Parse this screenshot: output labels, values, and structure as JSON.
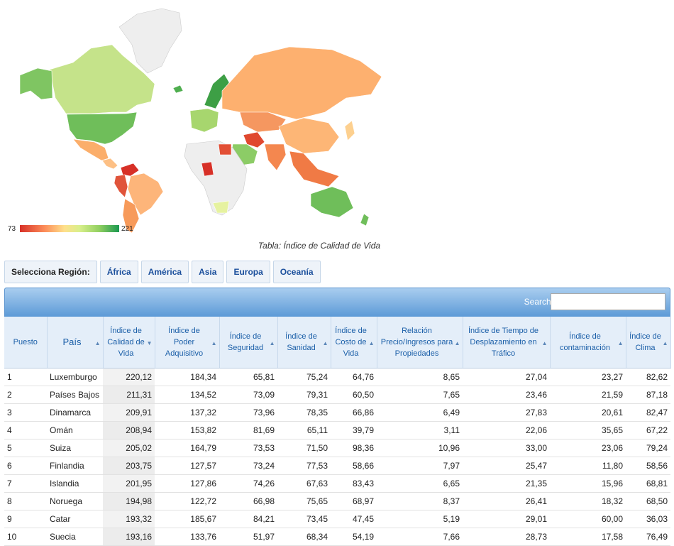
{
  "map": {
    "legend_min": "73",
    "legend_max": "221",
    "gradient_colors": [
      "#d73027",
      "#fc8d59",
      "#fee08b",
      "#d9ef8b",
      "#91cf60",
      "#1a9850"
    ]
  },
  "caption": "Tabla: Índice de Calidad de Vida",
  "region_bar": {
    "label": "Selecciona Región:",
    "buttons": [
      "África",
      "América",
      "Asia",
      "Europa",
      "Oceanía"
    ]
  },
  "table": {
    "search_label": "Search:",
    "search_value": "",
    "columns": [
      "Puesto",
      "País",
      "Índice de Calidad de Vida",
      "Índice de Poder Adquisitivo",
      "Índice de Seguridad",
      "Índice de Sanidad",
      "Índice de Costo de Vida",
      "Relación Precio/Ingresos para Propiedades",
      "Índice de Tiempo de Desplazamiento en Tráfico",
      "Índice de contaminación",
      "Índice de Clima"
    ],
    "rows": [
      [
        "1",
        "Luxemburgo",
        "220,12",
        "184,34",
        "65,81",
        "75,24",
        "64,76",
        "8,65",
        "27,04",
        "23,27",
        "82,62"
      ],
      [
        "2",
        "Países Bajos",
        "211,31",
        "134,52",
        "73,09",
        "79,31",
        "60,50",
        "7,65",
        "23,46",
        "21,59",
        "87,18"
      ],
      [
        "3",
        "Dinamarca",
        "209,91",
        "137,32",
        "73,96",
        "78,35",
        "66,86",
        "6,49",
        "27,83",
        "20,61",
        "82,47"
      ],
      [
        "4",
        "Omán",
        "208,94",
        "153,82",
        "81,69",
        "65,11",
        "39,79",
        "3,11",
        "22,06",
        "35,65",
        "67,22"
      ],
      [
        "5",
        "Suiza",
        "205,02",
        "164,79",
        "73,53",
        "71,50",
        "98,36",
        "10,96",
        "33,00",
        "23,06",
        "79,24"
      ],
      [
        "6",
        "Finlandia",
        "203,75",
        "127,57",
        "73,24",
        "77,53",
        "58,66",
        "7,97",
        "25,47",
        "11,80",
        "58,56"
      ],
      [
        "7",
        "Islandia",
        "201,95",
        "127,86",
        "74,26",
        "67,63",
        "83,43",
        "6,65",
        "21,35",
        "15,96",
        "68,81"
      ],
      [
        "8",
        "Noruega",
        "194,98",
        "122,72",
        "66,98",
        "75,65",
        "68,97",
        "8,37",
        "26,41",
        "18,32",
        "68,50"
      ],
      [
        "9",
        "Catar",
        "193,32",
        "185,67",
        "84,21",
        "73,45",
        "47,45",
        "5,19",
        "29,01",
        "60,00",
        "36,03"
      ],
      [
        "10",
        "Suecia",
        "193,16",
        "133,76",
        "51,97",
        "68,34",
        "54,19",
        "7,66",
        "28,73",
        "17,58",
        "76,49"
      ]
    ]
  }
}
